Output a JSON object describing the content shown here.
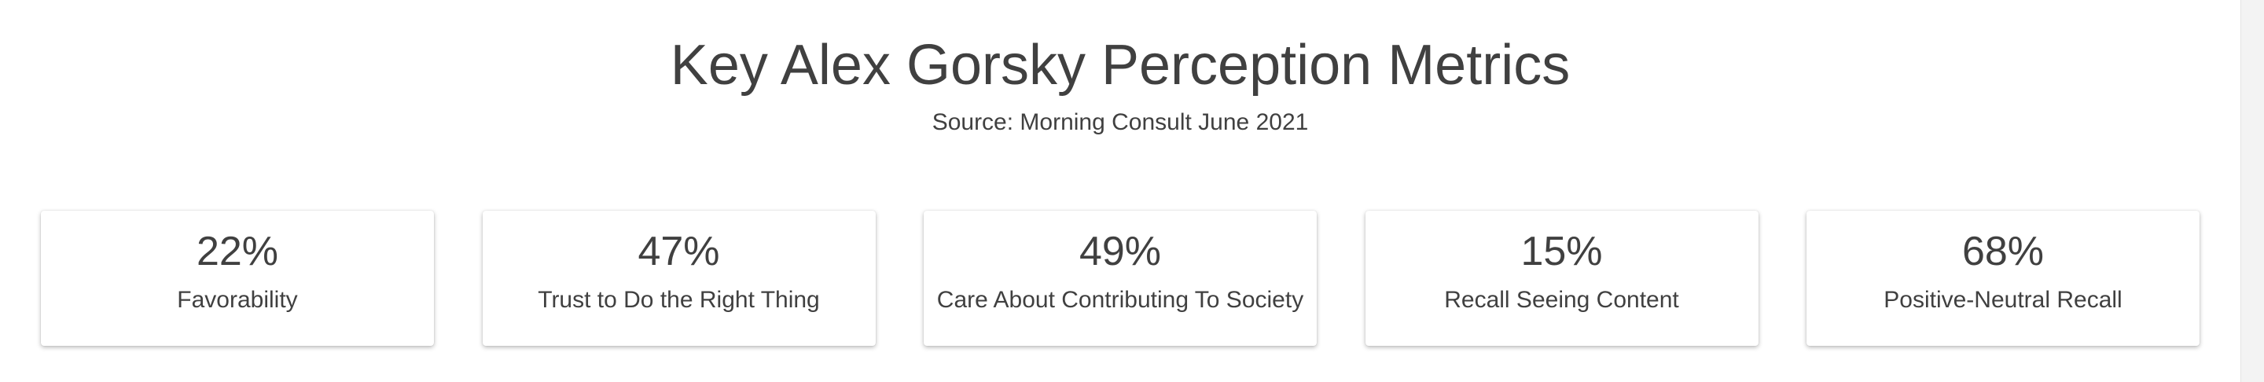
{
  "header": {
    "title": "Key Alex Gorsky Perception Metrics",
    "subtitle": "Source: Morning Consult June 2021"
  },
  "chart_data": {
    "type": "table",
    "title": "Key Alex Gorsky Perception Metrics",
    "subtitle": "Source: Morning Consult June 2021",
    "metrics": [
      {
        "value": "22%",
        "label": "Favorability"
      },
      {
        "value": "47%",
        "label": "Trust to Do the Right Thing"
      },
      {
        "value": "49%",
        "label": "Care About Contributing To Society"
      },
      {
        "value": "15%",
        "label": "Recall Seeing Content"
      },
      {
        "value": "68%",
        "label": "Positive-Neutral Recall"
      }
    ]
  },
  "colors": {
    "text": "#404040",
    "background": "#ffffff",
    "card_background": "#ffffff"
  }
}
